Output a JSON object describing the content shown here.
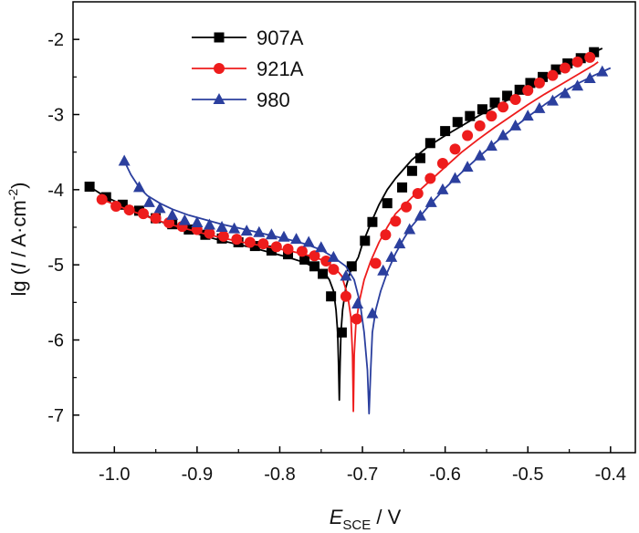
{
  "chart_data": {
    "type": "line",
    "title": "",
    "xlabel": {
      "main": "E",
      "sub": "SCE",
      "unit": " / V"
    },
    "ylabel": {
      "prefix": "lg (",
      "var": "I",
      "unit": " / A·cm",
      "sup": "-2",
      "suffix": ")"
    },
    "xlim": [
      -1.05,
      -0.37
    ],
    "ylim": [
      -7.5,
      -1.5
    ],
    "xticks": [
      -1.0,
      -0.9,
      -0.8,
      -0.7,
      -0.6,
      -0.5,
      -0.4
    ],
    "xtick_labels": [
      "-1.0",
      "-0.9",
      "-0.8",
      "-0.7",
      "-0.6",
      "-0.5",
      "-0.4"
    ],
    "yticks": [
      -7,
      -6,
      -5,
      -4,
      -3,
      -2
    ],
    "ytick_labels": [
      "-7",
      "-6",
      "-5",
      "-4",
      "-3",
      "-2"
    ],
    "grid": false,
    "legend_position": "top-left",
    "series": [
      {
        "name": "907A",
        "color": "#000000",
        "marker": "square",
        "curve": [
          [
            -1.03,
            -3.96
          ],
          [
            -1.01,
            -4.1
          ],
          [
            -0.99,
            -4.2
          ],
          [
            -0.97,
            -4.3
          ],
          [
            -0.95,
            -4.4
          ],
          [
            -0.93,
            -4.48
          ],
          [
            -0.91,
            -4.55
          ],
          [
            -0.89,
            -4.62
          ],
          [
            -0.87,
            -4.68
          ],
          [
            -0.85,
            -4.73
          ],
          [
            -0.83,
            -4.78
          ],
          [
            -0.81,
            -4.84
          ],
          [
            -0.79,
            -4.9
          ],
          [
            -0.77,
            -4.97
          ],
          [
            -0.755,
            -5.05
          ],
          [
            -0.745,
            -5.12
          ],
          [
            -0.74,
            -5.2
          ],
          [
            -0.735,
            -5.35
          ],
          [
            -0.732,
            -5.6
          ],
          [
            -0.73,
            -5.9
          ],
          [
            -0.729,
            -6.3
          ],
          [
            -0.728,
            -6.8
          ],
          [
            -0.727,
            -6.3
          ],
          [
            -0.726,
            -5.9
          ],
          [
            -0.724,
            -5.6
          ],
          [
            -0.72,
            -5.3
          ],
          [
            -0.715,
            -5.1
          ],
          [
            -0.71,
            -5.0
          ],
          [
            -0.705,
            -4.9
          ],
          [
            -0.7,
            -4.72
          ],
          [
            -0.69,
            -4.45
          ],
          [
            -0.68,
            -4.2
          ],
          [
            -0.67,
            -4.0
          ],
          [
            -0.66,
            -3.85
          ],
          [
            -0.64,
            -3.6
          ],
          [
            -0.62,
            -3.42
          ],
          [
            -0.6,
            -3.28
          ],
          [
            -0.58,
            -3.15
          ],
          [
            -0.56,
            -3.02
          ],
          [
            -0.54,
            -2.9
          ],
          [
            -0.52,
            -2.78
          ],
          [
            -0.5,
            -2.65
          ],
          [
            -0.48,
            -2.53
          ],
          [
            -0.46,
            -2.42
          ],
          [
            -0.44,
            -2.3
          ],
          [
            -0.42,
            -2.17
          ],
          [
            -0.41,
            -2.12
          ]
        ],
        "markers": [
          [
            -1.03,
            -3.96
          ],
          [
            -1.01,
            -4.1
          ],
          [
            -0.99,
            -4.2
          ],
          [
            -0.97,
            -4.28
          ],
          [
            -0.95,
            -4.38
          ],
          [
            -0.93,
            -4.46
          ],
          [
            -0.91,
            -4.53
          ],
          [
            -0.89,
            -4.6
          ],
          [
            -0.87,
            -4.65
          ],
          [
            -0.85,
            -4.7
          ],
          [
            -0.83,
            -4.75
          ],
          [
            -0.81,
            -4.81
          ],
          [
            -0.79,
            -4.86
          ],
          [
            -0.77,
            -4.93
          ],
          [
            -0.758,
            -5.02
          ],
          [
            -0.748,
            -5.12
          ],
          [
            -0.738,
            -5.42
          ],
          [
            -0.725,
            -5.9
          ],
          [
            -0.713,
            -5.02
          ],
          [
            -0.697,
            -4.68
          ],
          [
            -0.688,
            -4.43
          ],
          [
            -0.67,
            -4.18
          ],
          [
            -0.652,
            -3.97
          ],
          [
            -0.64,
            -3.75
          ],
          [
            -0.63,
            -3.58
          ],
          [
            -0.618,
            -3.38
          ],
          [
            -0.6,
            -3.22
          ],
          [
            -0.585,
            -3.1
          ],
          [
            -0.57,
            -3.02
          ],
          [
            -0.555,
            -2.93
          ],
          [
            -0.54,
            -2.84
          ],
          [
            -0.525,
            -2.75
          ],
          [
            -0.51,
            -2.67
          ],
          [
            -0.497,
            -2.58
          ],
          [
            -0.482,
            -2.5
          ],
          [
            -0.466,
            -2.4
          ],
          [
            -0.452,
            -2.32
          ],
          [
            -0.436,
            -2.25
          ],
          [
            -0.42,
            -2.17
          ]
        ]
      },
      {
        "name": "921A",
        "color": "#ee1c1c",
        "marker": "circle",
        "curve": [
          [
            -1.015,
            -4.13
          ],
          [
            -0.99,
            -4.24
          ],
          [
            -0.97,
            -4.32
          ],
          [
            -0.95,
            -4.4
          ],
          [
            -0.93,
            -4.47
          ],
          [
            -0.91,
            -4.53
          ],
          [
            -0.89,
            -4.59
          ],
          [
            -0.87,
            -4.64
          ],
          [
            -0.85,
            -4.69
          ],
          [
            -0.83,
            -4.73
          ],
          [
            -0.81,
            -4.77
          ],
          [
            -0.79,
            -4.81
          ],
          [
            -0.77,
            -4.86
          ],
          [
            -0.75,
            -4.93
          ],
          [
            -0.735,
            -5.02
          ],
          [
            -0.725,
            -5.15
          ],
          [
            -0.718,
            -5.4
          ],
          [
            -0.714,
            -5.7
          ],
          [
            -0.712,
            -6.2
          ],
          [
            -0.711,
            -6.95
          ],
          [
            -0.71,
            -6.2
          ],
          [
            -0.708,
            -5.8
          ],
          [
            -0.704,
            -5.5
          ],
          [
            -0.698,
            -5.2
          ],
          [
            -0.69,
            -4.95
          ],
          [
            -0.68,
            -4.7
          ],
          [
            -0.67,
            -4.5
          ],
          [
            -0.66,
            -4.32
          ],
          [
            -0.64,
            -4.1
          ],
          [
            -0.62,
            -3.9
          ],
          [
            -0.6,
            -3.7
          ],
          [
            -0.58,
            -3.5
          ],
          [
            -0.56,
            -3.33
          ],
          [
            -0.54,
            -3.17
          ],
          [
            -0.52,
            -3.02
          ],
          [
            -0.5,
            -2.87
          ],
          [
            -0.48,
            -2.73
          ],
          [
            -0.46,
            -2.6
          ],
          [
            -0.44,
            -2.47
          ],
          [
            -0.42,
            -2.34
          ],
          [
            -0.415,
            -2.3
          ]
        ],
        "markers": [
          [
            -1.015,
            -4.13
          ],
          [
            -0.998,
            -4.22
          ],
          [
            -0.982,
            -4.27
          ],
          [
            -0.965,
            -4.32
          ],
          [
            -0.95,
            -4.38
          ],
          [
            -0.934,
            -4.44
          ],
          [
            -0.918,
            -4.49
          ],
          [
            -0.9,
            -4.53
          ],
          [
            -0.885,
            -4.58
          ],
          [
            -0.868,
            -4.62
          ],
          [
            -0.852,
            -4.66
          ],
          [
            -0.836,
            -4.7
          ],
          [
            -0.82,
            -4.72
          ],
          [
            -0.804,
            -4.76
          ],
          [
            -0.79,
            -4.79
          ],
          [
            -0.773,
            -4.82
          ],
          [
            -0.758,
            -4.88
          ],
          [
            -0.744,
            -4.95
          ],
          [
            -0.735,
            -5.06
          ],
          [
            -0.72,
            -5.42
          ],
          [
            -0.707,
            -5.72
          ],
          [
            -0.684,
            -4.98
          ],
          [
            -0.672,
            -4.6
          ],
          [
            -0.66,
            -4.42
          ],
          [
            -0.647,
            -4.23
          ],
          [
            -0.633,
            -4.05
          ],
          [
            -0.618,
            -3.85
          ],
          [
            -0.603,
            -3.65
          ],
          [
            -0.588,
            -3.46
          ],
          [
            -0.573,
            -3.28
          ],
          [
            -0.558,
            -3.15
          ],
          [
            -0.544,
            -3.02
          ],
          [
            -0.53,
            -2.9
          ],
          [
            -0.515,
            -2.8
          ],
          [
            -0.5,
            -2.68
          ],
          [
            -0.486,
            -2.58
          ],
          [
            -0.47,
            -2.48
          ],
          [
            -0.455,
            -2.38
          ],
          [
            -0.44,
            -2.3
          ],
          [
            -0.425,
            -2.24
          ]
        ]
      },
      {
        "name": "980",
        "color": "#2b3f9e",
        "marker": "triangle",
        "curve": [
          [
            -0.988,
            -3.62
          ],
          [
            -0.98,
            -3.8
          ],
          [
            -0.97,
            -3.97
          ],
          [
            -0.96,
            -4.08
          ],
          [
            -0.945,
            -4.18
          ],
          [
            -0.93,
            -4.26
          ],
          [
            -0.91,
            -4.34
          ],
          [
            -0.89,
            -4.4
          ],
          [
            -0.87,
            -4.46
          ],
          [
            -0.85,
            -4.51
          ],
          [
            -0.83,
            -4.56
          ],
          [
            -0.81,
            -4.61
          ],
          [
            -0.79,
            -4.66
          ],
          [
            -0.77,
            -4.72
          ],
          [
            -0.75,
            -4.8
          ],
          [
            -0.735,
            -4.9
          ],
          [
            -0.72,
            -5.02
          ],
          [
            -0.71,
            -5.2
          ],
          [
            -0.703,
            -5.5
          ],
          [
            -0.698,
            -5.9
          ],
          [
            -0.694,
            -6.4
          ],
          [
            -0.692,
            -6.98
          ],
          [
            -0.69,
            -6.4
          ],
          [
            -0.688,
            -5.9
          ],
          [
            -0.684,
            -5.6
          ],
          [
            -0.678,
            -5.35
          ],
          [
            -0.67,
            -5.1
          ],
          [
            -0.66,
            -4.85
          ],
          [
            -0.65,
            -4.65
          ],
          [
            -0.64,
            -4.48
          ],
          [
            -0.62,
            -4.22
          ],
          [
            -0.6,
            -3.98
          ],
          [
            -0.58,
            -3.77
          ],
          [
            -0.56,
            -3.57
          ],
          [
            -0.54,
            -3.38
          ],
          [
            -0.52,
            -3.2
          ],
          [
            -0.5,
            -3.03
          ],
          [
            -0.48,
            -2.87
          ],
          [
            -0.46,
            -2.72
          ],
          [
            -0.44,
            -2.59
          ],
          [
            -0.42,
            -2.48
          ],
          [
            -0.4,
            -2.38
          ]
        ],
        "markers": [
          [
            -0.988,
            -3.62
          ],
          [
            -0.97,
            -3.97
          ],
          [
            -0.958,
            -4.17
          ],
          [
            -0.945,
            -4.25
          ],
          [
            -0.93,
            -4.34
          ],
          [
            -0.915,
            -4.41
          ],
          [
            -0.9,
            -4.44
          ],
          [
            -0.885,
            -4.47
          ],
          [
            -0.87,
            -4.5
          ],
          [
            -0.855,
            -4.52
          ],
          [
            -0.84,
            -4.55
          ],
          [
            -0.825,
            -4.57
          ],
          [
            -0.81,
            -4.6
          ],
          [
            -0.795,
            -4.63
          ],
          [
            -0.78,
            -4.66
          ],
          [
            -0.765,
            -4.7
          ],
          [
            -0.75,
            -4.77
          ],
          [
            -0.735,
            -4.9
          ],
          [
            -0.72,
            -5.15
          ],
          [
            -0.706,
            -5.52
          ],
          [
            -0.688,
            -5.65
          ],
          [
            -0.675,
            -5.08
          ],
          [
            -0.665,
            -4.9
          ],
          [
            -0.655,
            -4.72
          ],
          [
            -0.643,
            -4.53
          ],
          [
            -0.63,
            -4.35
          ],
          [
            -0.617,
            -4.17
          ],
          [
            -0.603,
            -4.0
          ],
          [
            -0.588,
            -3.85
          ],
          [
            -0.573,
            -3.7
          ],
          [
            -0.558,
            -3.55
          ],
          [
            -0.544,
            -3.42
          ],
          [
            -0.53,
            -3.28
          ],
          [
            -0.515,
            -3.15
          ],
          [
            -0.5,
            -3.02
          ],
          [
            -0.486,
            -2.92
          ],
          [
            -0.47,
            -2.82
          ],
          [
            -0.455,
            -2.72
          ],
          [
            -0.44,
            -2.62
          ],
          [
            -0.425,
            -2.52
          ],
          [
            -0.41,
            -2.43
          ]
        ]
      }
    ]
  }
}
